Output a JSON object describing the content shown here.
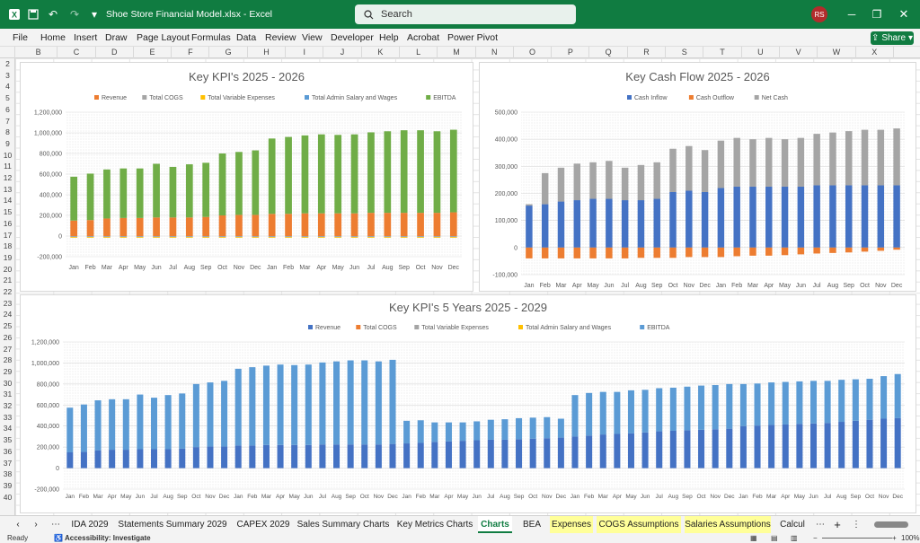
{
  "titlebar": {
    "title": "Shoe Store Financial Model.xlsx  -  Excel",
    "search_placeholder": "Search",
    "avatar_initials": "RS",
    "accent": "#107c41"
  },
  "menu": {
    "items": [
      "File",
      "Home",
      "Insert",
      "Draw",
      "Page Layout",
      "Formulas",
      "Data",
      "Review",
      "View",
      "Developer",
      "Help",
      "Acrobat",
      "Power Pivot"
    ],
    "share_label": "Share"
  },
  "columns": [
    "B",
    "C",
    "D",
    "E",
    "F",
    "G",
    "H",
    "I",
    "J",
    "K",
    "L",
    "M",
    "N",
    "O",
    "P",
    "Q",
    "R",
    "S",
    "T",
    "U",
    "V",
    "W",
    "X"
  ],
  "rows": [
    "2",
    "3",
    "4",
    "5",
    "6",
    "7",
    "8",
    "9",
    "10",
    "11",
    "12",
    "13",
    "14",
    "15",
    "16",
    "17",
    "18",
    "19",
    "20",
    "21",
    "22",
    "23",
    "24",
    "25",
    "26",
    "27",
    "28",
    "29",
    "30",
    "31",
    "32",
    "33",
    "34",
    "35",
    "36",
    "37",
    "38",
    "39",
    "40"
  ],
  "charts": {
    "kpi_2yr": {
      "title": "Key KPI's 2025 - 2026",
      "legend": [
        "Revenue",
        "Total COGS",
        "Total Variable Expenses",
        "Total Admin Salary and Wages",
        "EBITDA"
      ],
      "colors": [
        "#ed7d31",
        "#a5a5a5",
        "#ffc000",
        "#5b9bd5",
        "#70ad47"
      ],
      "y_ticks": [
        "1,200,000",
        "1,000,000",
        "800,000",
        "600,000",
        "400,000",
        "200,000",
        "0",
        "-200,000"
      ],
      "categories": [
        "Jan",
        "Feb",
        "Mar",
        "Apr",
        "May",
        "Jun",
        "Jul",
        "Aug",
        "Sep",
        "Oct",
        "Nov",
        "Dec",
        "Jan",
        "Feb",
        "Mar",
        "Apr",
        "May",
        "Jun",
        "Jul",
        "Aug",
        "Sep",
        "Oct",
        "Nov",
        "Dec"
      ]
    },
    "cash_2yr": {
      "title": "Key Cash Flow 2025 - 2026",
      "legend": [
        "Cash Inflow",
        "Cash Outflow",
        "Net Cash"
      ],
      "colors": [
        "#4472c4",
        "#ed7d31",
        "#a5a5a5"
      ],
      "y_ticks": [
        "500,000",
        "400,000",
        "300,000",
        "200,000",
        "100,000",
        "0",
        "-100,000"
      ],
      "categories": [
        "Jan",
        "Feb",
        "Mar",
        "Apr",
        "May",
        "Jun",
        "Jul",
        "Aug",
        "Sep",
        "Oct",
        "Nov",
        "Dec",
        "Jan",
        "Feb",
        "Mar",
        "Apr",
        "May",
        "Jun",
        "Jul",
        "Aug",
        "Sep",
        "Oct",
        "Nov",
        "Dec"
      ]
    },
    "kpi_5yr": {
      "title": "Key KPI's 5 Years 2025 - 2029",
      "legend": [
        "Revenue",
        "Total COGS",
        "Total Variable Expenses",
        "Total Admin Salary and Wages",
        "EBITDA"
      ],
      "colors": [
        "#4472c4",
        "#ed7d31",
        "#a5a5a5",
        "#ffc000",
        "#5b9bd5"
      ],
      "y_ticks": [
        "1,200,000",
        "1,000,000",
        "800,000",
        "600,000",
        "400,000",
        "200,000",
        "0",
        "-200,000"
      ],
      "month_labels": [
        "Jan",
        "Feb",
        "Mar",
        "Apr",
        "May",
        "Jun",
        "Jul",
        "Aug",
        "Sep",
        "Oct",
        "Nov",
        "Dec"
      ]
    }
  },
  "chart_data": [
    {
      "type": "bar",
      "title": "Key KPI's 2025 - 2026",
      "ylim": [
        -200000,
        1200000
      ],
      "categories": [
        "Jan",
        "Feb",
        "Mar",
        "Apr",
        "May",
        "Jun",
        "Jul",
        "Aug",
        "Sep",
        "Oct",
        "Nov",
        "Dec",
        "Jan",
        "Feb",
        "Mar",
        "Apr",
        "May",
        "Jun",
        "Jul",
        "Aug",
        "Sep",
        "Oct",
        "Nov",
        "Dec"
      ],
      "series": [
        {
          "name": "Revenue",
          "values": [
            150000,
            155000,
            170000,
            175000,
            175000,
            180000,
            180000,
            180000,
            185000,
            200000,
            205000,
            205000,
            215000,
            215000,
            220000,
            220000,
            220000,
            220000,
            225000,
            225000,
            225000,
            225000,
            225000,
            230000
          ]
        },
        {
          "name": "Total COGS",
          "values": [
            -10000,
            -10000,
            -10000,
            -10000,
            -10000,
            -10000,
            -10000,
            -10000,
            -10000,
            -10000,
            -10000,
            -10000,
            -10000,
            -10000,
            -10000,
            -10000,
            -10000,
            -10000,
            -10000,
            -10000,
            -10000,
            -10000,
            -10000,
            -10000
          ]
        },
        {
          "name": "Total Variable Expenses",
          "values": [
            -5000,
            -5000,
            -5000,
            -5000,
            -5000,
            -5000,
            -5000,
            -5000,
            -5000,
            -5000,
            -5000,
            -5000,
            -5000,
            -5000,
            -5000,
            -5000,
            -5000,
            -5000,
            -5000,
            -5000,
            -5000,
            -5000,
            -5000,
            -5000
          ]
        },
        {
          "name": "EBITDA",
          "values": [
            425000,
            450000,
            475000,
            480000,
            480000,
            520000,
            490000,
            515000,
            525000,
            600000,
            610000,
            625000,
            730000,
            745000,
            755000,
            765000,
            760000,
            765000,
            780000,
            790000,
            800000,
            800000,
            790000,
            800000
          ]
        }
      ]
    },
    {
      "type": "bar",
      "title": "Key Cash Flow 2025 - 2026",
      "ylim": [
        -100000,
        500000
      ],
      "categories": [
        "Jan",
        "Feb",
        "Mar",
        "Apr",
        "May",
        "Jun",
        "Jul",
        "Aug",
        "Sep",
        "Oct",
        "Nov",
        "Dec",
        "Jan",
        "Feb",
        "Mar",
        "Apr",
        "May",
        "Jun",
        "Jul",
        "Aug",
        "Sep",
        "Oct",
        "Nov",
        "Dec"
      ],
      "series": [
        {
          "name": "Cash Inflow",
          "values": [
            155000,
            160000,
            170000,
            175000,
            180000,
            180000,
            175000,
            175000,
            180000,
            205000,
            210000,
            205000,
            220000,
            225000,
            225000,
            225000,
            225000,
            225000,
            230000,
            230000,
            230000,
            230000,
            230000,
            230000
          ]
        },
        {
          "name": "Cash Outflow",
          "values": [
            -40000,
            -40000,
            -40000,
            -40000,
            -40000,
            -40000,
            -40000,
            -38000,
            -38000,
            -38000,
            -35000,
            -35000,
            -35000,
            -32000,
            -30000,
            -30000,
            -28000,
            -25000,
            -22000,
            -20000,
            -18000,
            -15000,
            -12000,
            -8000
          ]
        },
        {
          "name": "Net Cash",
          "values": [
            5000,
            115000,
            125000,
            135000,
            135000,
            140000,
            120000,
            130000,
            135000,
            160000,
            165000,
            155000,
            175000,
            180000,
            175000,
            180000,
            175000,
            180000,
            190000,
            195000,
            200000,
            205000,
            205000,
            210000
          ]
        }
      ]
    },
    {
      "type": "bar",
      "title": "Key KPI's 5 Years 2025 - 2029",
      "ylim": [
        -200000,
        1200000
      ],
      "categories_note": "Jan..Dec repeated for 5 years",
      "series": [
        {
          "name": "Revenue",
          "values": [
            150000,
            155000,
            170000,
            175000,
            175000,
            180000,
            180000,
            180000,
            185000,
            200000,
            205000,
            205000,
            215000,
            215000,
            220000,
            220000,
            220000,
            220000,
            225000,
            225000,
            225000,
            225000,
            225000,
            230000,
            235000,
            240000,
            250000,
            255000,
            260000,
            265000,
            270000,
            270000,
            275000,
            280000,
            285000,
            290000,
            300000,
            310000,
            320000,
            325000,
            330000,
            340000,
            350000,
            355000,
            360000,
            365000,
            370000,
            375000,
            400000,
            405000,
            410000,
            415000,
            420000,
            425000,
            430000,
            440000,
            450000,
            460000,
            470000,
            475000
          ]
        },
        {
          "name": "EBITDA",
          "values": [
            425000,
            450000,
            475000,
            480000,
            480000,
            520000,
            490000,
            515000,
            525000,
            600000,
            610000,
            625000,
            730000,
            745000,
            755000,
            765000,
            760000,
            765000,
            780000,
            790000,
            800000,
            800000,
            790000,
            800000,
            215000,
            215000,
            185000,
            180000,
            175000,
            180000,
            190000,
            195000,
            200000,
            200000,
            200000,
            180000,
            395000,
            405000,
            405000,
            400000,
            410000,
            405000,
            410000,
            410000,
            415000,
            420000,
            420000,
            425000,
            400000,
            400000,
            405000,
            405000,
            405000,
            405000,
            400000,
            400000,
            395000,
            390000,
            405000,
            420000
          ]
        }
      ]
    }
  ],
  "sheet_tabs": [
    {
      "label": "IDA 2029",
      "style": "normal"
    },
    {
      "label": "Statements Summary 2029",
      "style": "normal"
    },
    {
      "label": "CAPEX 2029",
      "style": "normal"
    },
    {
      "label": "Sales Summary Charts",
      "style": "normal"
    },
    {
      "label": "Key Metrics Charts",
      "style": "normal"
    },
    {
      "label": "Charts",
      "style": "active"
    },
    {
      "label": "BEA",
      "style": "normal"
    },
    {
      "label": "Expenses",
      "style": "yellow"
    },
    {
      "label": "COGS Assumptions",
      "style": "yellow"
    },
    {
      "label": "Salaries Assumptions",
      "style": "yellow"
    },
    {
      "label": "Calcul",
      "style": "normal"
    }
  ],
  "statusbar": {
    "ready": "Ready",
    "accessibility": "Accessibility: Investigate",
    "zoom": "100%"
  }
}
